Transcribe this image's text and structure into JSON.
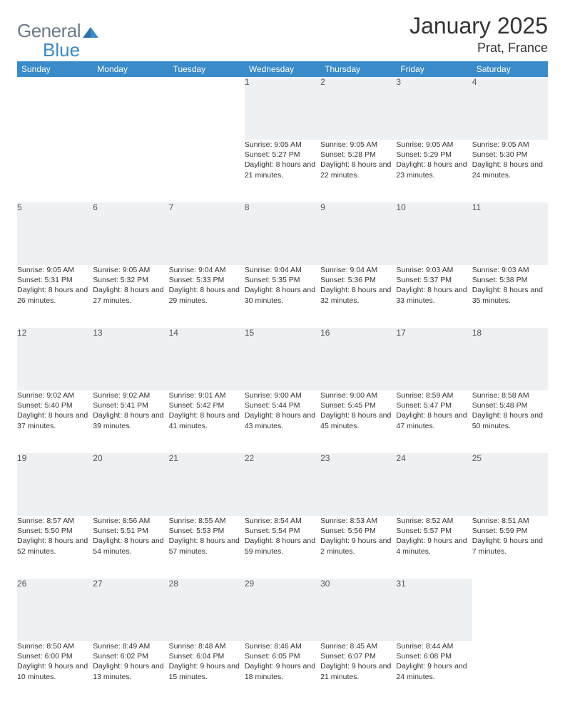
{
  "brand": {
    "left": "General",
    "right": "Blue"
  },
  "title": "January 2025",
  "location": "Prat, France",
  "colors": {
    "header_bg": "#3a8bc9",
    "header_fg": "#ffffff",
    "daynum_bg": "#eef1f3",
    "row_border": "#3a8bc9",
    "text": "#333333",
    "logo_gray": "#6b7a89",
    "logo_blue": "#3a8bc9",
    "page_bg": "#ffffff"
  },
  "typography": {
    "title_size_pt": 24,
    "location_size_pt": 14,
    "header_size_pt": 9,
    "body_size_pt": 8
  },
  "weekdays": [
    "Sunday",
    "Monday",
    "Tuesday",
    "Wednesday",
    "Thursday",
    "Friday",
    "Saturday"
  ],
  "weeks": [
    [
      null,
      null,
      null,
      {
        "n": "1",
        "sunrise": "9:05 AM",
        "sunset": "5:27 PM",
        "daylight": "8 hours and 21 minutes."
      },
      {
        "n": "2",
        "sunrise": "9:05 AM",
        "sunset": "5:28 PM",
        "daylight": "8 hours and 22 minutes."
      },
      {
        "n": "3",
        "sunrise": "9:05 AM",
        "sunset": "5:29 PM",
        "daylight": "8 hours and 23 minutes."
      },
      {
        "n": "4",
        "sunrise": "9:05 AM",
        "sunset": "5:30 PM",
        "daylight": "8 hours and 24 minutes."
      }
    ],
    [
      {
        "n": "5",
        "sunrise": "9:05 AM",
        "sunset": "5:31 PM",
        "daylight": "8 hours and 26 minutes."
      },
      {
        "n": "6",
        "sunrise": "9:05 AM",
        "sunset": "5:32 PM",
        "daylight": "8 hours and 27 minutes."
      },
      {
        "n": "7",
        "sunrise": "9:04 AM",
        "sunset": "5:33 PM",
        "daylight": "8 hours and 29 minutes."
      },
      {
        "n": "8",
        "sunrise": "9:04 AM",
        "sunset": "5:35 PM",
        "daylight": "8 hours and 30 minutes."
      },
      {
        "n": "9",
        "sunrise": "9:04 AM",
        "sunset": "5:36 PM",
        "daylight": "8 hours and 32 minutes."
      },
      {
        "n": "10",
        "sunrise": "9:03 AM",
        "sunset": "5:37 PM",
        "daylight": "8 hours and 33 minutes."
      },
      {
        "n": "11",
        "sunrise": "9:03 AM",
        "sunset": "5:38 PM",
        "daylight": "8 hours and 35 minutes."
      }
    ],
    [
      {
        "n": "12",
        "sunrise": "9:02 AM",
        "sunset": "5:40 PM",
        "daylight": "8 hours and 37 minutes."
      },
      {
        "n": "13",
        "sunrise": "9:02 AM",
        "sunset": "5:41 PM",
        "daylight": "8 hours and 39 minutes."
      },
      {
        "n": "14",
        "sunrise": "9:01 AM",
        "sunset": "5:42 PM",
        "daylight": "8 hours and 41 minutes."
      },
      {
        "n": "15",
        "sunrise": "9:00 AM",
        "sunset": "5:44 PM",
        "daylight": "8 hours and 43 minutes."
      },
      {
        "n": "16",
        "sunrise": "9:00 AM",
        "sunset": "5:45 PM",
        "daylight": "8 hours and 45 minutes."
      },
      {
        "n": "17",
        "sunrise": "8:59 AM",
        "sunset": "5:47 PM",
        "daylight": "8 hours and 47 minutes."
      },
      {
        "n": "18",
        "sunrise": "8:58 AM",
        "sunset": "5:48 PM",
        "daylight": "8 hours and 50 minutes."
      }
    ],
    [
      {
        "n": "19",
        "sunrise": "8:57 AM",
        "sunset": "5:50 PM",
        "daylight": "8 hours and 52 minutes."
      },
      {
        "n": "20",
        "sunrise": "8:56 AM",
        "sunset": "5:51 PM",
        "daylight": "8 hours and 54 minutes."
      },
      {
        "n": "21",
        "sunrise": "8:55 AM",
        "sunset": "5:53 PM",
        "daylight": "8 hours and 57 minutes."
      },
      {
        "n": "22",
        "sunrise": "8:54 AM",
        "sunset": "5:54 PM",
        "daylight": "8 hours and 59 minutes."
      },
      {
        "n": "23",
        "sunrise": "8:53 AM",
        "sunset": "5:56 PM",
        "daylight": "9 hours and 2 minutes."
      },
      {
        "n": "24",
        "sunrise": "8:52 AM",
        "sunset": "5:57 PM",
        "daylight": "9 hours and 4 minutes."
      },
      {
        "n": "25",
        "sunrise": "8:51 AM",
        "sunset": "5:59 PM",
        "daylight": "9 hours and 7 minutes."
      }
    ],
    [
      {
        "n": "26",
        "sunrise": "8:50 AM",
        "sunset": "6:00 PM",
        "daylight": "9 hours and 10 minutes."
      },
      {
        "n": "27",
        "sunrise": "8:49 AM",
        "sunset": "6:02 PM",
        "daylight": "9 hours and 13 minutes."
      },
      {
        "n": "28",
        "sunrise": "8:48 AM",
        "sunset": "6:04 PM",
        "daylight": "9 hours and 15 minutes."
      },
      {
        "n": "29",
        "sunrise": "8:46 AM",
        "sunset": "6:05 PM",
        "daylight": "9 hours and 18 minutes."
      },
      {
        "n": "30",
        "sunrise": "8:45 AM",
        "sunset": "6:07 PM",
        "daylight": "9 hours and 21 minutes."
      },
      {
        "n": "31",
        "sunrise": "8:44 AM",
        "sunset": "6:08 PM",
        "daylight": "9 hours and 24 minutes."
      },
      null
    ]
  ],
  "labels": {
    "sunrise": "Sunrise: ",
    "sunset": "Sunset: ",
    "daylight": "Daylight: "
  }
}
